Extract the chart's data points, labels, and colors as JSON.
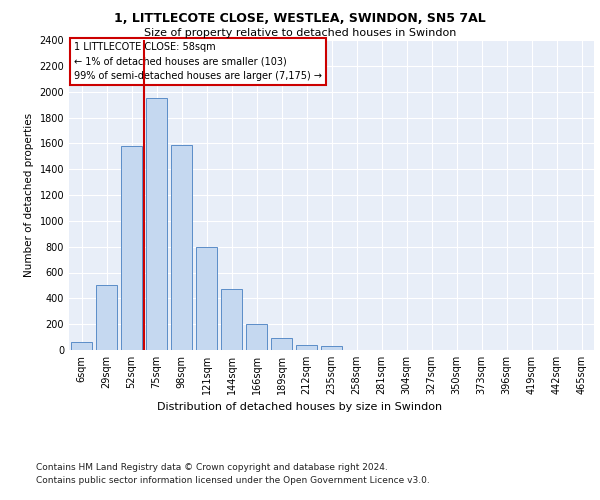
{
  "title_line1": "1, LITTLECOTE CLOSE, WESTLEA, SWINDON, SN5 7AL",
  "title_line2": "Size of property relative to detached houses in Swindon",
  "xlabel": "Distribution of detached houses by size in Swindon",
  "ylabel": "Number of detached properties",
  "categories": [
    "6sqm",
    "29sqm",
    "52sqm",
    "75sqm",
    "98sqm",
    "121sqm",
    "144sqm",
    "166sqm",
    "189sqm",
    "212sqm",
    "235sqm",
    "258sqm",
    "281sqm",
    "304sqm",
    "327sqm",
    "350sqm",
    "373sqm",
    "396sqm",
    "419sqm",
    "442sqm",
    "465sqm"
  ],
  "bar_heights": [
    60,
    500,
    1580,
    1950,
    1590,
    800,
    475,
    200,
    90,
    35,
    30,
    0,
    0,
    0,
    0,
    0,
    0,
    0,
    0,
    0,
    0
  ],
  "bar_color": "#c5d8f0",
  "bar_edge_color": "#5b8dc8",
  "vline_x": 2.5,
  "vline_color": "#cc0000",
  "annotation_text": "1 LITTLECOTE CLOSE: 58sqm\n← 1% of detached houses are smaller (103)\n99% of semi-detached houses are larger (7,175) →",
  "annotation_box_color": "#cc0000",
  "ylim": [
    0,
    2400
  ],
  "yticks": [
    0,
    200,
    400,
    600,
    800,
    1000,
    1200,
    1400,
    1600,
    1800,
    2000,
    2200,
    2400
  ],
  "footer_line1": "Contains HM Land Registry data © Crown copyright and database right 2024.",
  "footer_line2": "Contains public sector information licensed under the Open Government Licence v3.0.",
  "plot_bg_color": "#e8eef8"
}
